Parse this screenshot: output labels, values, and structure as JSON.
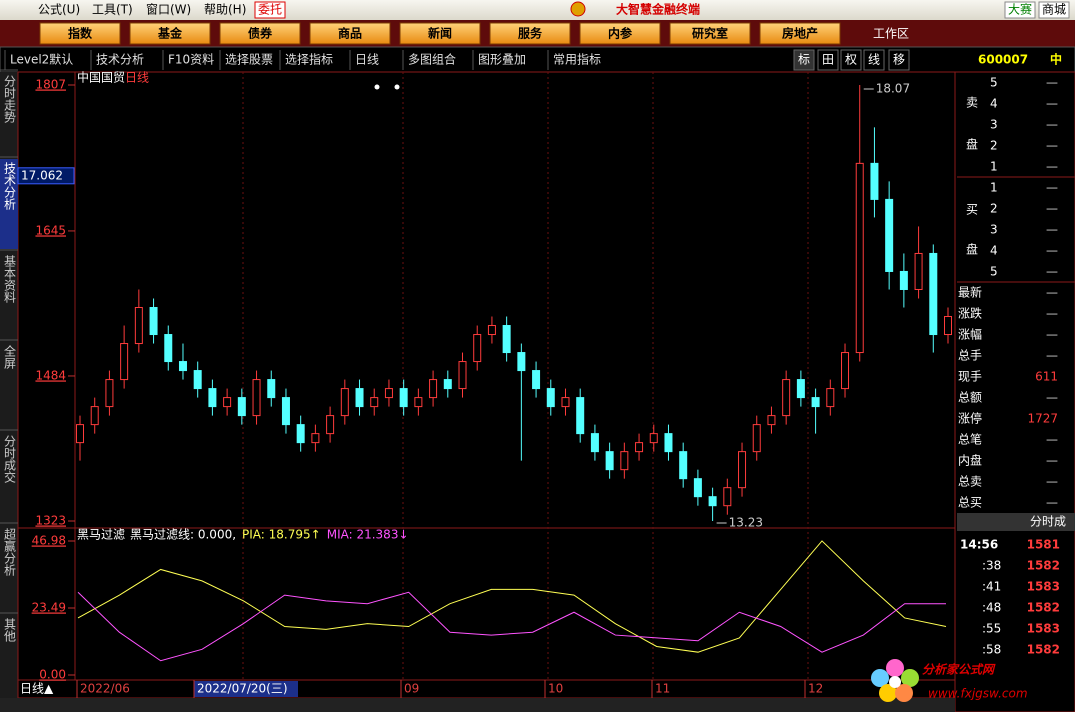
{
  "menu": {
    "items": [
      "公式(U)",
      "工具(T)",
      "窗口(W)",
      "帮助(H)"
    ],
    "trade": "委托",
    "title": "大智慧金融终端",
    "right": [
      "大赛",
      "商城"
    ]
  },
  "nav": {
    "buttons": [
      "指数",
      "基金",
      "债券",
      "商品",
      "新闻",
      "服务",
      "内参",
      "研究室",
      "房地产"
    ],
    "workspace": "工作区"
  },
  "toolbar": {
    "items": [
      "Level2默认",
      "技术分析",
      "F10资料",
      "选择股票",
      "选择指标",
      "日线",
      "多图组合",
      "图形叠加",
      "常用指标"
    ],
    "tools": [
      "标",
      "田",
      "权",
      "线",
      "移"
    ],
    "code": "600007",
    "market": "中"
  },
  "side_tabs": [
    "分时走势",
    "技术分析",
    "基本资料",
    "全屏",
    "分时成交",
    "超赢分析",
    "其他"
  ],
  "chart_data": [
    {
      "type": "candlestick",
      "title": "中国国贸",
      "subtitle": "日线",
      "ylim": [
        13.23,
        18.07
      ],
      "yticks": [
        {
          "value": 18.07,
          "label": "1807"
        },
        {
          "value": 16.45,
          "label": "1645"
        },
        {
          "value": 14.84,
          "label": "1484"
        },
        {
          "value": 13.23,
          "label": "1323"
        }
      ],
      "cursor": 17.062,
      "up_color": "#ff3c3c",
      "down_color": "#54ffff",
      "open": [
        14.1,
        14.3,
        14.5,
        14.8,
        15.2,
        15.6,
        15.3,
        15.0,
        14.9,
        14.7,
        14.5,
        14.6,
        14.4,
        14.8,
        14.6,
        14.3,
        14.1,
        14.2,
        14.4,
        14.7,
        14.5,
        14.6,
        14.7,
        14.5,
        14.6,
        14.8,
        14.7,
        15.0,
        15.3,
        15.4,
        15.1,
        14.9,
        14.7,
        14.5,
        14.6,
        14.2,
        14.0,
        13.8,
        14.0,
        14.1,
        14.2,
        14.0,
        13.7,
        13.5,
        13.4,
        13.6,
        14.0,
        14.3,
        14.4,
        14.8,
        14.6,
        14.5,
        14.7,
        15.1,
        17.2,
        16.8,
        16.0,
        15.8,
        16.2,
        15.3
      ],
      "high": [
        14.4,
        14.6,
        14.9,
        15.4,
        15.8,
        15.7,
        15.4,
        15.2,
        15.0,
        14.8,
        14.7,
        14.7,
        14.9,
        14.9,
        14.7,
        14.4,
        14.3,
        14.5,
        14.8,
        14.8,
        14.7,
        14.8,
        14.8,
        14.7,
        14.9,
        14.9,
        15.1,
        15.4,
        15.5,
        15.5,
        15.2,
        15.0,
        14.8,
        14.7,
        14.7,
        14.3,
        14.1,
        14.1,
        14.2,
        14.3,
        14.3,
        14.1,
        13.8,
        13.6,
        13.7,
        14.1,
        14.4,
        14.5,
        14.9,
        14.9,
        14.7,
        14.8,
        15.2,
        18.07,
        17.6,
        17.0,
        16.2,
        16.5,
        16.3,
        15.6
      ],
      "low": [
        13.9,
        14.2,
        14.4,
        14.7,
        15.1,
        15.2,
        14.9,
        14.8,
        14.6,
        14.4,
        14.4,
        14.3,
        14.3,
        14.5,
        14.2,
        14.0,
        14.0,
        14.1,
        14.3,
        14.4,
        14.4,
        14.5,
        14.4,
        14.4,
        14.5,
        14.6,
        14.6,
        14.9,
        15.2,
        15.0,
        13.9,
        14.6,
        14.4,
        14.4,
        14.1,
        13.9,
        13.7,
        13.7,
        13.9,
        14.0,
        13.9,
        13.6,
        13.4,
        13.23,
        13.3,
        13.5,
        13.9,
        14.2,
        14.3,
        14.5,
        14.2,
        14.4,
        14.6,
        15.0,
        16.6,
        15.8,
        15.6,
        15.7,
        15.1,
        15.2
      ],
      "close": [
        14.3,
        14.5,
        14.8,
        15.2,
        15.6,
        15.3,
        15.0,
        14.9,
        14.7,
        14.5,
        14.6,
        14.4,
        14.8,
        14.6,
        14.3,
        14.1,
        14.2,
        14.4,
        14.7,
        14.5,
        14.6,
        14.7,
        14.5,
        14.6,
        14.8,
        14.7,
        15.0,
        15.3,
        15.4,
        15.1,
        14.9,
        14.7,
        14.5,
        14.6,
        14.2,
        14.0,
        13.8,
        14.0,
        14.1,
        14.2,
        14.0,
        13.7,
        13.5,
        13.4,
        13.6,
        14.0,
        14.3,
        14.4,
        14.8,
        14.6,
        14.5,
        14.7,
        15.1,
        17.2,
        16.8,
        16.0,
        15.8,
        16.2,
        15.3,
        15.5
      ],
      "annotations": [
        {
          "text": "18.07",
          "value": 18.07
        },
        {
          "text": "13.23",
          "value": 13.23
        }
      ]
    },
    {
      "type": "line",
      "title": "黑马过滤",
      "legend": [
        {
          "text": "黑马过滤线: 0.000,",
          "color": "#ffffff"
        },
        {
          "text": "PIA: 18.795↑",
          "color": "#ffff54"
        },
        {
          "text": "MIA: 21.383↓",
          "color": "#ff54ff"
        }
      ],
      "ylim": [
        0,
        46.98
      ],
      "yticks": [
        46.98,
        23.49,
        {
          "value": 0,
          "label": "0.00"
        }
      ],
      "series": [
        {
          "color": "#ffff54",
          "values": [
            20,
            28,
            37,
            33,
            26,
            17,
            16,
            18,
            17,
            25,
            30,
            30,
            28,
            18,
            10,
            8,
            13,
            30,
            47,
            33,
            20,
            17
          ]
        },
        {
          "color": "#ff54ff",
          "values": [
            29,
            15,
            5,
            9,
            18,
            28,
            26,
            25,
            29,
            15,
            14,
            15,
            22,
            14,
            13,
            12,
            22,
            17,
            8,
            14,
            25,
            25
          ]
        }
      ]
    }
  ],
  "date_axis": {
    "period": "日线▲",
    "labels": [
      "2022/06",
      "2022/07/20(三)",
      "09",
      "10",
      "11",
      "12"
    ]
  },
  "quote": {
    "sell_label": [
      "卖",
      "盘"
    ],
    "buy_label": [
      "买",
      "盘"
    ],
    "sell": [
      {
        "level": "5",
        "value": "—"
      },
      {
        "level": "4",
        "value": "—"
      },
      {
        "level": "3",
        "value": "—"
      },
      {
        "level": "2",
        "value": "—"
      },
      {
        "level": "1",
        "value": "—"
      }
    ],
    "buy": [
      {
        "level": "1",
        "value": "—"
      },
      {
        "level": "2",
        "value": "—"
      },
      {
        "level": "3",
        "value": "—"
      },
      {
        "level": "4",
        "value": "—"
      },
      {
        "level": "5",
        "value": "—"
      }
    ],
    "stats": [
      {
        "label": "最新",
        "value": "—"
      },
      {
        "label": "涨跌",
        "value": "—"
      },
      {
        "label": "涨幅",
        "value": "—"
      },
      {
        "label": "总手",
        "value": "—"
      },
      {
        "label": "现手",
        "value": "611"
      },
      {
        "label": "总额",
        "value": "—"
      },
      {
        "label": "涨停",
        "value": "1727"
      },
      {
        "label": "总笔",
        "value": "—"
      },
      {
        "label": "内盘",
        "value": "—"
      },
      {
        "label": "总卖",
        "value": "—"
      },
      {
        "label": "总买",
        "value": "—"
      }
    ],
    "ticks_header": "分时成",
    "ticks": [
      {
        "time": "14:56",
        "price": "1581"
      },
      {
        "time": ":38",
        "price": "1582"
      },
      {
        "time": ":41",
        "price": "1583"
      },
      {
        "time": ":48",
        "price": "1582"
      },
      {
        "time": ":55",
        "price": "1583"
      },
      {
        "time": ":58",
        "price": "1582"
      }
    ]
  },
  "logo": {
    "name": "分析家公式网",
    "url": "www.fxjgsw.com"
  }
}
